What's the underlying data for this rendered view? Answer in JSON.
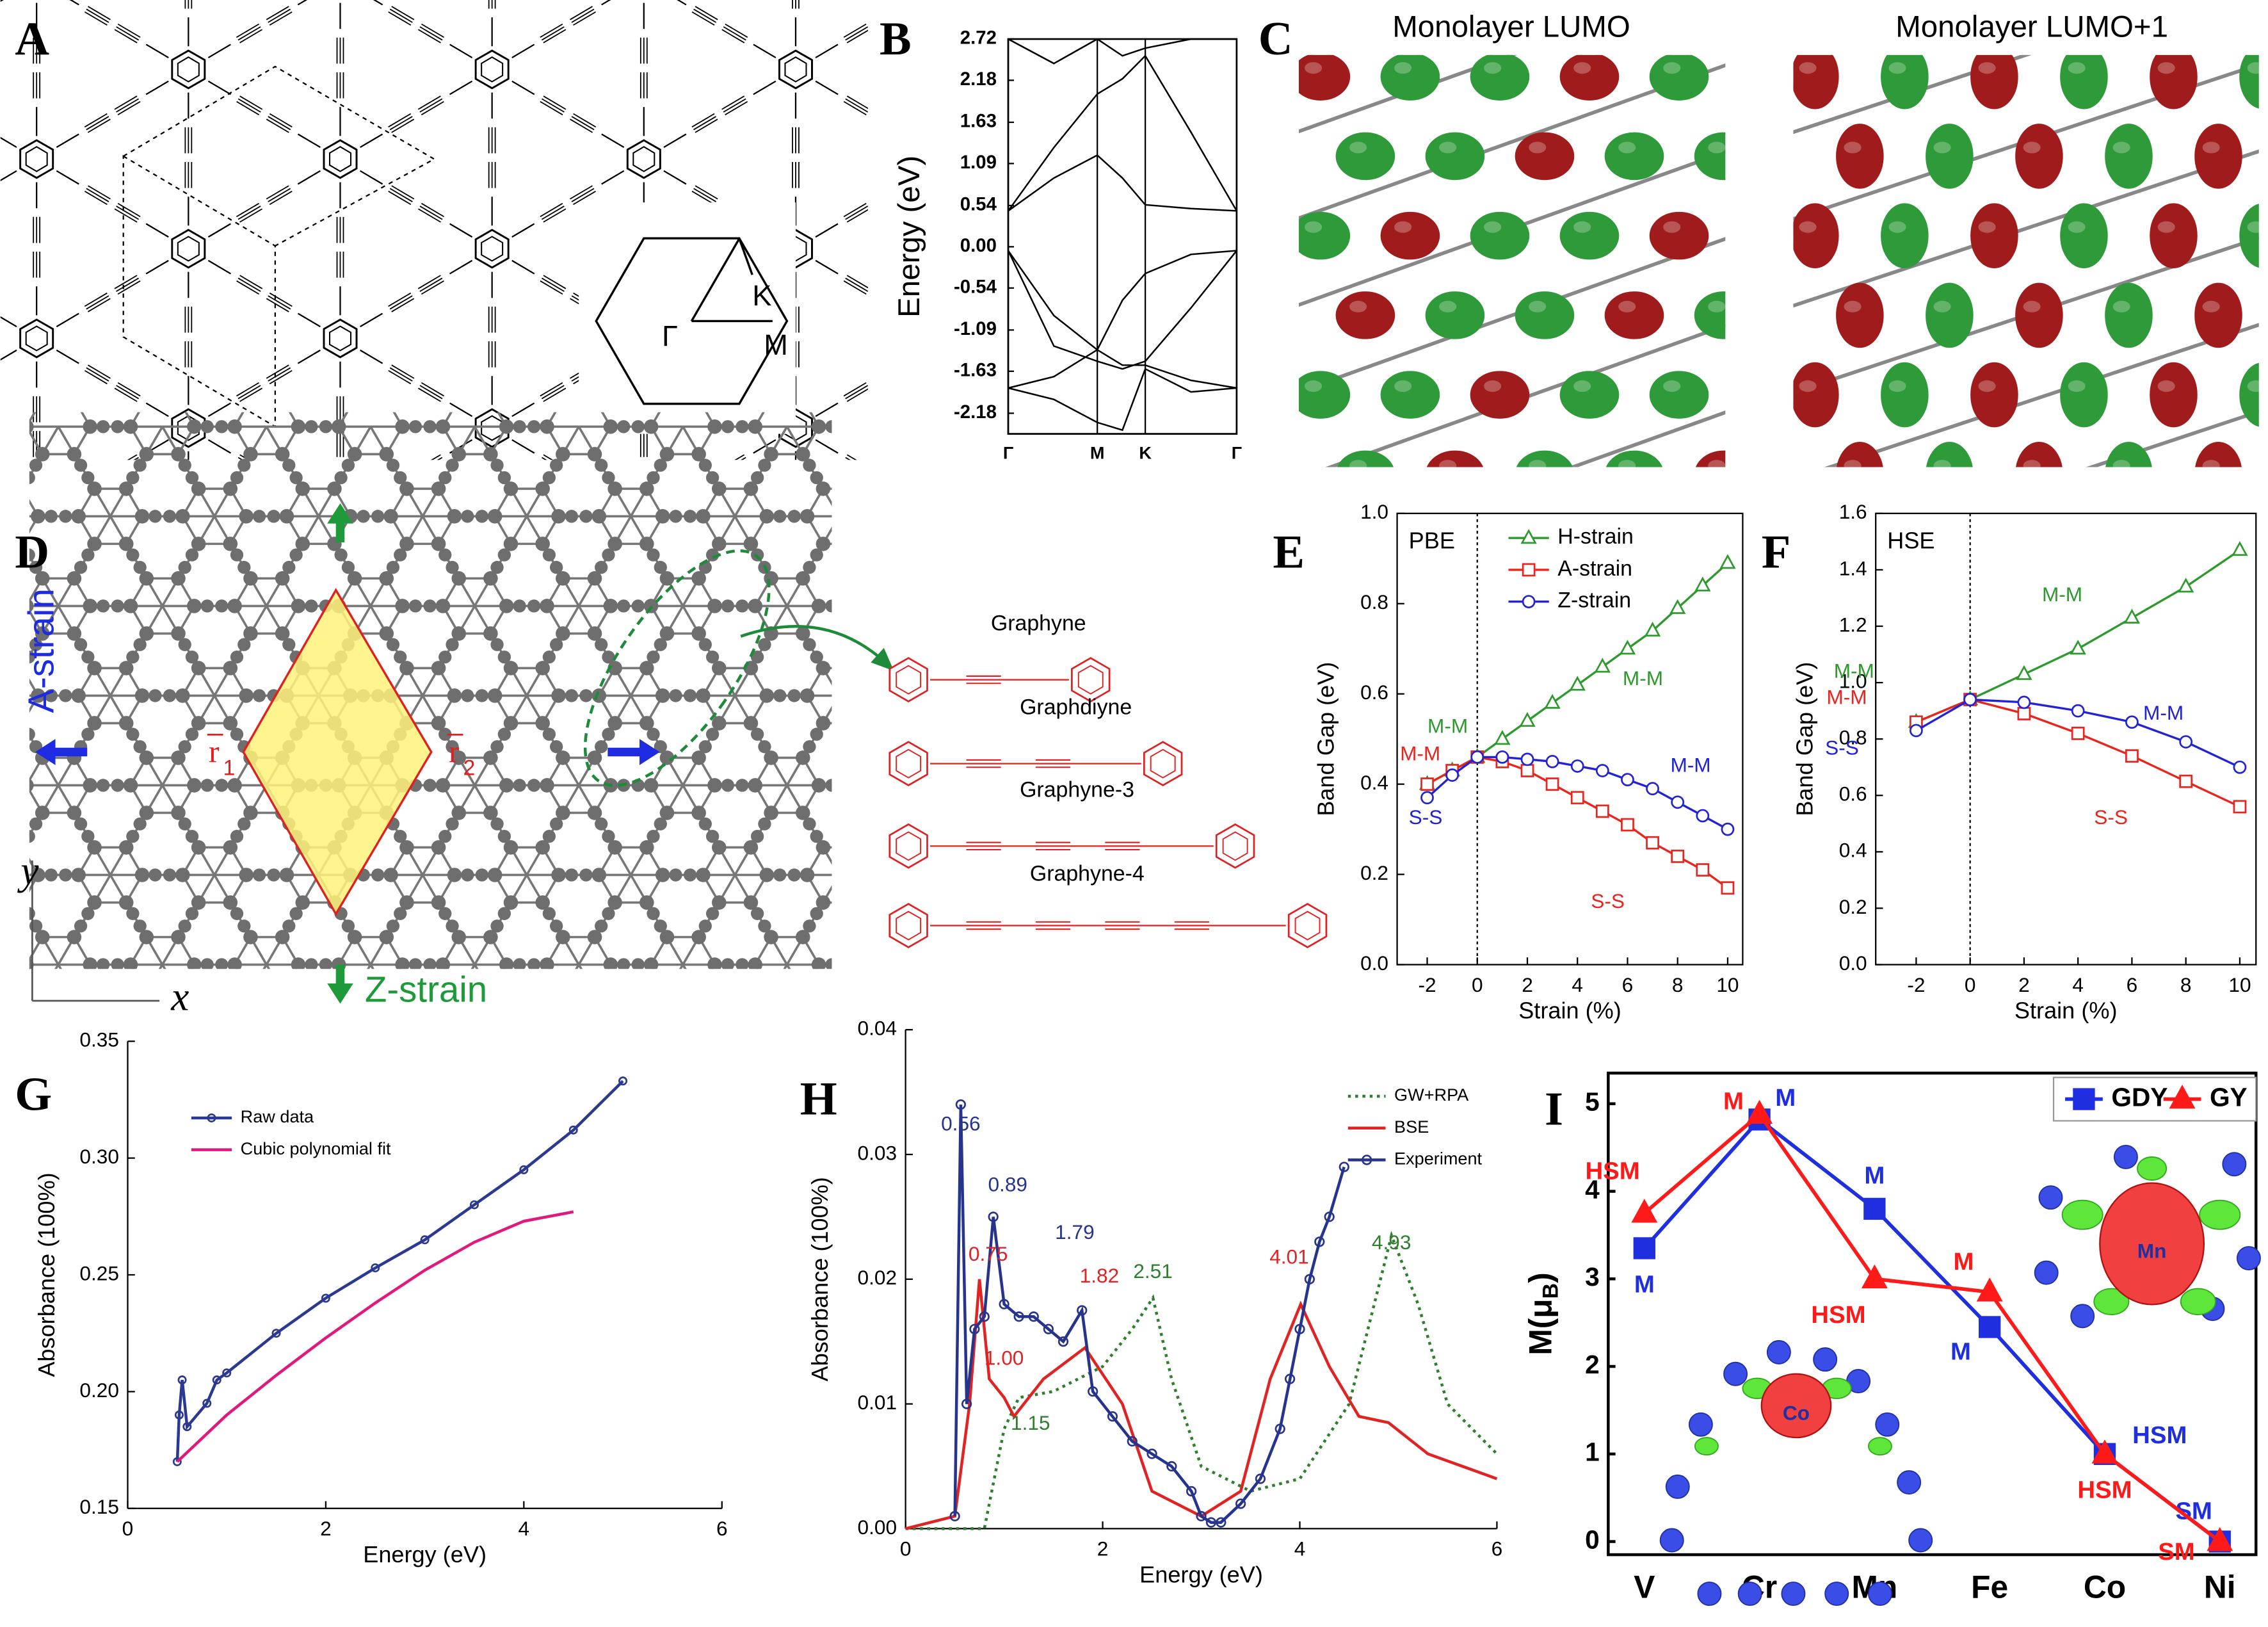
{
  "panels": [
    "A",
    "B",
    "C",
    "D",
    "E",
    "F",
    "G",
    "H",
    "I"
  ],
  "brillouin_zone": {
    "gamma": "Γ",
    "k": "K",
    "m": "M"
  },
  "orbital_titles": [
    "Monolayer LUMO",
    "Monolayer LUMO+1"
  ],
  "strain_diagram": {
    "a_strain": "A-strain",
    "z_strain": "Z-strain",
    "r1": "r",
    "r1_sub": "1",
    "r2": "r",
    "r2_sub": "2",
    "x_axis": "x",
    "y_axis": "y",
    "molecules": [
      "Graphyne",
      "Graphdiyne",
      "Graphyne-3",
      "Graphyne-4"
    ]
  },
  "insets": [
    "Co",
    "Mn"
  ],
  "chart_data": [
    {
      "type": "band-structure",
      "ylabel": "Energy (eV)",
      "color": "#000000",
      "xlim": [
        0,
        1
      ],
      "xticks": [
        {
          "value": 0,
          "label": "Γ"
        },
        {
          "value": 0.39,
          "label": "M"
        },
        {
          "value": 0.6,
          "label": "K"
        },
        {
          "value": 1,
          "label": "Γ"
        }
      ],
      "ylim": [
        -2.45,
        2.72
      ],
      "yticks": [
        2.72,
        2.18,
        1.63,
        1.09,
        0.54,
        {
          "value": 0,
          "label": "0.00"
        },
        -0.54,
        -1.09,
        -1.63,
        -2.18
      ],
      "x": [
        0,
        0.2,
        0.39,
        0.5,
        0.6,
        0.8,
        1
      ],
      "bands": [
        [
          0.47,
          0.9,
          1.2,
          0.9,
          0.55,
          0.5,
          0.47
        ],
        [
          0.47,
          1.3,
          2.0,
          2.2,
          2.5,
          1.5,
          0.47
        ],
        [
          2.72,
          2.4,
          2.72,
          2.5,
          2.6,
          2.72,
          2.72
        ],
        [
          -0.05,
          -0.9,
          -1.35,
          -0.7,
          -0.35,
          -0.1,
          -0.05
        ],
        [
          -0.05,
          -1.3,
          -1.5,
          -1.6,
          -1.5,
          -0.8,
          -0.05
        ],
        [
          -1.85,
          -1.7,
          -1.35,
          -1.55,
          -1.55,
          -1.75,
          -1.85
        ],
        [
          -1.85,
          -2.0,
          -2.3,
          -2.4,
          -1.6,
          -1.9,
          -1.85
        ]
      ]
    },
    {
      "type": "line",
      "label": "PBE",
      "xlabel": "Strain (%)",
      "ylabel": "Band Gap (eV)",
      "reference_x": 0,
      "xlim": [
        -3.2,
        10.6
      ],
      "xticks": [
        -2,
        0,
        2,
        4,
        6,
        8,
        10
      ],
      "ylim": [
        0,
        1
      ],
      "yticks": [
        {
          "value": 0,
          "label": "0.0"
        },
        0.2,
        0.4,
        0.6,
        0.8,
        {
          "value": 1,
          "label": "1.0"
        }
      ],
      "x": [
        -2,
        -1,
        0,
        1,
        2,
        3,
        4,
        5,
        6,
        7,
        8,
        9,
        10
      ],
      "series": [
        {
          "name": "H-strain",
          "color": "#2e9a2e",
          "marker": "triangle",
          "values": [
            0.4,
            0.43,
            0.46,
            0.5,
            0.54,
            0.58,
            0.62,
            0.66,
            0.7,
            0.74,
            0.79,
            0.84,
            0.89
          ]
        },
        {
          "name": "A-strain",
          "color": "#e8261f",
          "marker": "square",
          "values": [
            0.4,
            0.43,
            0.46,
            0.45,
            0.43,
            0.4,
            0.37,
            0.34,
            0.31,
            0.27,
            0.24,
            0.21,
            0.17
          ]
        },
        {
          "name": "Z-strain",
          "color": "#2323d6",
          "marker": "circle",
          "values": [
            0.37,
            0.42,
            0.46,
            0.46,
            0.455,
            0.45,
            0.44,
            0.43,
            0.41,
            0.39,
            0.36,
            0.33,
            0.3
          ]
        }
      ],
      "annotations": [
        {
          "text": "M-M",
          "color": "#2e9a2e"
        },
        {
          "text": "M-M",
          "color": "#2e9a2e"
        },
        {
          "text": "M-M",
          "color": "#e8261f"
        },
        {
          "text": "S-S",
          "color": "#2323d6"
        },
        {
          "text": "M-M",
          "color": "#2323d6"
        },
        {
          "text": "S-S",
          "color": "#e8261f"
        }
      ]
    },
    {
      "type": "line",
      "label": "HSE",
      "xlabel": "Strain (%)",
      "ylabel": "Band Gap (eV)",
      "reference_x": 0,
      "xlim": [
        -3.5,
        10.6
      ],
      "xticks": [
        -2,
        0,
        2,
        4,
        6,
        8,
        10
      ],
      "ylim": [
        0,
        1.6
      ],
      "yticks": [
        {
          "value": 0,
          "label": "0.0"
        },
        0.2,
        0.4,
        0.6,
        0.8,
        {
          "value": 1,
          "label": "1.0"
        },
        1.2,
        1.4,
        1.6
      ],
      "x": [
        -2,
        0,
        2,
        4,
        6,
        8,
        10
      ],
      "series": [
        {
          "name": "H-strain",
          "color": "#2e9a2e",
          "marker": "triangle",
          "values": [
            0.86,
            0.94,
            1.03,
            1.12,
            1.23,
            1.34,
            1.47
          ]
        },
        {
          "name": "A-strain",
          "color": "#e8261f",
          "marker": "square",
          "values": [
            0.86,
            0.94,
            0.89,
            0.82,
            0.74,
            0.65,
            0.56
          ]
        },
        {
          "name": "Z-strain",
          "color": "#2323d6",
          "marker": "circle",
          "values": [
            0.83,
            0.94,
            0.93,
            0.9,
            0.86,
            0.79,
            0.7
          ]
        }
      ],
      "annotations": [
        {
          "text": "M-M",
          "color": "#2e9a2e"
        },
        {
          "text": "M-M",
          "color": "#2e9a2e"
        },
        {
          "text": "M-M",
          "color": "#e8261f"
        },
        {
          "text": "S-S",
          "color": "#2323d6"
        },
        {
          "text": "M-M",
          "color": "#2323d6"
        },
        {
          "text": "S-S",
          "color": "#e8261f"
        }
      ]
    },
    {
      "type": "line",
      "xlabel": "Energy (eV)",
      "ylabel": "Absorbance (100%)",
      "xlim": [
        0,
        6
      ],
      "xticks": [
        0,
        2,
        4,
        6
      ],
      "ylim": [
        0.15,
        0.35
      ],
      "yticks": [
        0.15,
        {
          "value": 0.2,
          "label": "0.20"
        },
        0.25,
        {
          "value": 0.3,
          "label": "0.30"
        },
        0.35
      ],
      "series": [
        {
          "name": "Raw data",
          "color": "#2b3990",
          "marker": "circle",
          "x": [
            0.5,
            0.52,
            0.55,
            0.6,
            0.8,
            0.9,
            1,
            1.5,
            2,
            2.5,
            3,
            3.5,
            4,
            4.5,
            5
          ],
          "values": [
            0.17,
            0.19,
            0.205,
            0.185,
            0.195,
            0.205,
            0.208,
            0.225,
            0.24,
            0.253,
            0.265,
            0.28,
            0.295,
            0.312,
            0.333
          ]
        },
        {
          "name": "Cubic polynomial fit",
          "color": "#e0197d",
          "x": [
            0.5,
            1,
            1.5,
            2,
            2.5,
            3,
            3.5,
            4,
            4.5
          ],
          "values": [
            0.17,
            0.19,
            0.207,
            0.223,
            0.238,
            0.252,
            0.264,
            0.273,
            0.277
          ]
        }
      ]
    },
    {
      "type": "line",
      "xlabel": "Energy (eV)",
      "ylabel": "Absorbance (100%)",
      "xlim": [
        0,
        6
      ],
      "xticks": [
        0,
        2,
        4,
        6
      ],
      "ylim": [
        0,
        0.04
      ],
      "yticks": [
        {
          "value": 0,
          "label": "0.00"
        },
        {
          "value": 0.01,
          "label": "0.01"
        },
        {
          "value": 0.02,
          "label": "0.02"
        },
        {
          "value": 0.03,
          "label": "0.03"
        },
        {
          "value": 0.04,
          "label": "0.04"
        }
      ],
      "series": [
        {
          "name": "GW+RPA",
          "color": "#2f7f2f",
          "dash": "dotted",
          "x": [
            0,
            0.8,
            1.0,
            1.15,
            1.5,
            2.0,
            2.3,
            2.51,
            2.7,
            3.0,
            3.5,
            4.0,
            4.5,
            4.93,
            5.2,
            5.5,
            6
          ],
          "values": [
            0,
            0,
            0.008,
            0.0105,
            0.011,
            0.013,
            0.016,
            0.0185,
            0.012,
            0.005,
            0.003,
            0.004,
            0.01,
            0.0235,
            0.018,
            0.01,
            0.006
          ]
        },
        {
          "name": "BSE",
          "color": "#e02424",
          "x": [
            0,
            0.5,
            0.65,
            0.75,
            0.85,
            1.0,
            1.1,
            1.4,
            1.82,
            2.2,
            2.5,
            3.0,
            3.4,
            3.7,
            4.01,
            4.3,
            4.6,
            4.9,
            5.3,
            6
          ],
          "values": [
            0,
            0.001,
            0.01,
            0.02,
            0.012,
            0.0105,
            0.009,
            0.012,
            0.0145,
            0.01,
            0.003,
            0.001,
            0.003,
            0.012,
            0.018,
            0.013,
            0.009,
            0.0085,
            0.006,
            0.004
          ]
        },
        {
          "name": "Experiment",
          "color": "#27348b",
          "marker": "circle",
          "x": [
            0.5,
            0.56,
            0.62,
            0.7,
            0.8,
            0.89,
            1.0,
            1.15,
            1.3,
            1.45,
            1.6,
            1.79,
            1.9,
            2.1,
            2.3,
            2.5,
            2.7,
            2.9,
            3.0,
            3.1,
            3.2,
            3.4,
            3.6,
            3.8,
            3.9,
            4.0,
            4.1,
            4.2,
            4.3,
            4.45
          ],
          "values": [
            0.001,
            0.034,
            0.01,
            0.016,
            0.017,
            0.025,
            0.018,
            0.017,
            0.017,
            0.016,
            0.015,
            0.0175,
            0.011,
            0.009,
            0.007,
            0.006,
            0.005,
            0.003,
            0.001,
            0.0005,
            0.0005,
            0.002,
            0.004,
            0.008,
            0.012,
            0.016,
            0.02,
            0.023,
            0.025,
            0.029
          ]
        }
      ],
      "annotations": [
        {
          "value": 0.56,
          "label": "0.56",
          "color": "#27348b"
        },
        {
          "value": 0.89,
          "label": "0.89",
          "color": "#27348b"
        },
        {
          "value": 1.79,
          "label": "1.79",
          "color": "#27348b"
        },
        {
          "value": 2.51,
          "label": "2.51",
          "color": "#2f7f2f"
        },
        {
          "value": 4.93,
          "label": "4.93",
          "color": "#2f7f2f"
        },
        {
          "value": 0.75,
          "label": "0.75",
          "color": "#e02424"
        },
        {
          "value": 1.0,
          "label": "1.00",
          "color": "#e02424"
        },
        {
          "value": 1.82,
          "label": "1.82",
          "color": "#e02424"
        },
        {
          "value": 4.01,
          "label": "4.01",
          "color": "#e02424"
        },
        {
          "value": 1.15,
          "label": "1.15",
          "color": "#2f7f2f"
        }
      ]
    },
    {
      "type": "line",
      "ylabel": {
        "text": "M(μ",
        "sub": "B",
        "end": ")"
      },
      "categories": [
        "V",
        "Cr",
        "Mn",
        "Fe",
        "Co",
        "Ni"
      ],
      "ylim": [
        -0.15,
        5.35
      ],
      "yticks": [
        0,
        1,
        2,
        3,
        4,
        5
      ],
      "series": [
        {
          "name": "GDY",
          "color": "#1f2fe0",
          "marker": "square",
          "filled": true,
          "values": [
            3.35,
            4.82,
            3.8,
            2.45,
            1.0,
            0.0
          ],
          "point_labels": [
            "M",
            "M",
            "M",
            "M",
            "HSM",
            "SM"
          ]
        },
        {
          "name": "GY",
          "color": "#ff1a1a",
          "marker": "triangle",
          "filled": true,
          "values": [
            3.75,
            4.88,
            3.0,
            2.85,
            1.0,
            0.0
          ],
          "point_labels": [
            "HSM",
            "M",
            "HSM",
            "M",
            "HSM",
            "SM"
          ]
        }
      ]
    }
  ]
}
